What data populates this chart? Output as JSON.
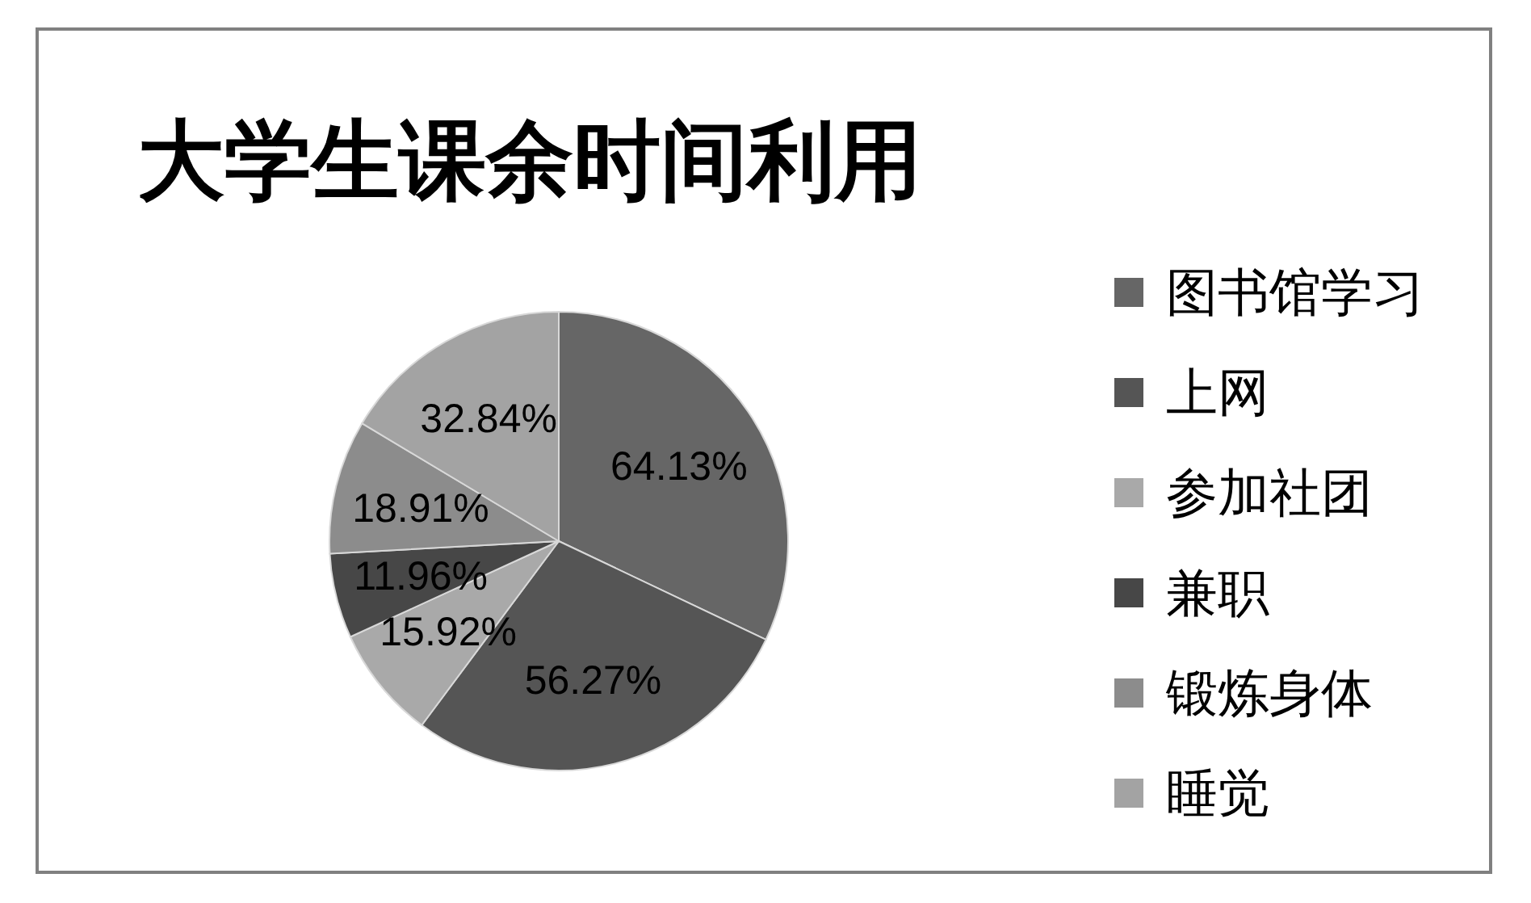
{
  "chart_data": {
    "type": "pie",
    "title": "大学生课余时间利用",
    "categories": [
      "图书馆学习",
      "上网",
      "参加社团",
      "兼职",
      "锻炼身体",
      "睡觉"
    ],
    "values": [
      64.13,
      56.27,
      15.92,
      11.96,
      18.91,
      32.84
    ],
    "value_labels": [
      "64.13%",
      "56.27%",
      "15.92%",
      "11.96%",
      "18.91%",
      "32.84%"
    ],
    "colors": [
      "#666666",
      "#555555",
      "#a9a9a9",
      "#474747",
      "#8c8c8c",
      "#a3a3a3"
    ],
    "legend": "right"
  }
}
